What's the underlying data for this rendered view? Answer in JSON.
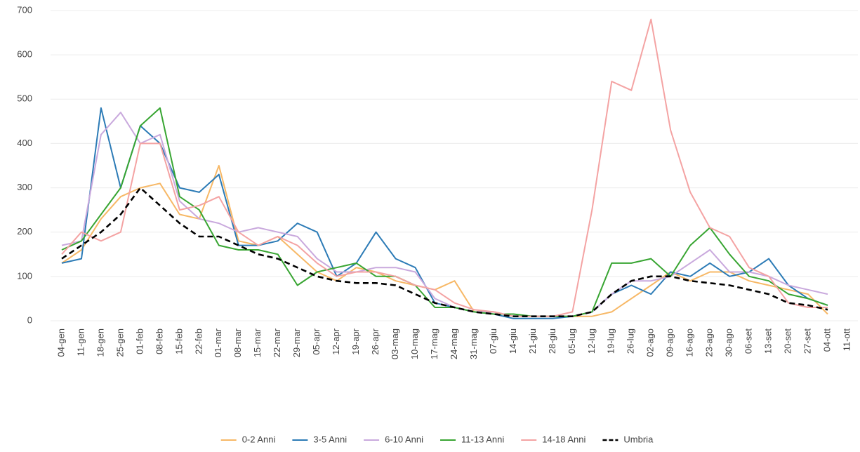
{
  "chart_data": {
    "type": "line",
    "categories": [
      "04-gen",
      "11-gen",
      "18-gen",
      "25-gen",
      "01-feb",
      "08-feb",
      "15-feb",
      "22-feb",
      "01-mar",
      "08-mar",
      "15-mar",
      "22-mar",
      "29-mar",
      "05-apr",
      "12-apr",
      "19-apr",
      "26-apr",
      "03-mag",
      "10-mag",
      "17-mag",
      "24-mag",
      "31-mag",
      "07-giu",
      "14-giu",
      "21-giu",
      "28-giu",
      "05-lug",
      "12-lug",
      "19-lug",
      "26-lug",
      "02-ago",
      "09-ago",
      "16-ago",
      "23-ago",
      "30-ago",
      "06-set",
      "13-set",
      "20-set",
      "27-set",
      "04-ott",
      "11-ott"
    ],
    "series": [
      {
        "name": "0-2 Anni",
        "color": "#f7b866",
        "values": [
          130,
          160,
          230,
          280,
          300,
          310,
          240,
          230,
          350,
          180,
          170,
          190,
          150,
          110,
          90,
          120,
          110,
          90,
          80,
          70,
          90,
          20,
          20,
          10,
          10,
          10,
          10,
          10,
          20,
          50,
          80,
          110,
          90,
          110,
          110,
          90,
          80,
          70,
          60,
          15,
          null
        ]
      },
      {
        "name": "3-5 Anni",
        "color": "#2c7bb6",
        "values": [
          130,
          140,
          480,
          300,
          440,
          400,
          300,
          290,
          330,
          170,
          170,
          180,
          220,
          200,
          100,
          130,
          200,
          140,
          120,
          40,
          30,
          20,
          15,
          5,
          5,
          5,
          10,
          20,
          60,
          80,
          60,
          110,
          100,
          130,
          100,
          110,
          140,
          80,
          50,
          35,
          null
        ]
      },
      {
        "name": "6-10 Anni",
        "color": "#c9a9dd",
        "values": [
          170,
          180,
          420,
          470,
          400,
          420,
          270,
          230,
          220,
          200,
          210,
          200,
          190,
          140,
          110,
          110,
          120,
          120,
          110,
          50,
          30,
          20,
          20,
          10,
          10,
          10,
          10,
          20,
          60,
          90,
          90,
          100,
          130,
          160,
          110,
          110,
          100,
          80,
          70,
          60,
          null
        ]
      },
      {
        "name": "11-13 Anni",
        "color": "#38a532",
        "values": [
          160,
          180,
          240,
          300,
          440,
          480,
          280,
          250,
          170,
          160,
          160,
          150,
          80,
          110,
          120,
          130,
          100,
          100,
          80,
          30,
          30,
          20,
          15,
          15,
          10,
          10,
          10,
          20,
          130,
          130,
          140,
          100,
          170,
          210,
          150,
          100,
          90,
          60,
          50,
          35,
          null
        ]
      },
      {
        "name": "14-18 Anni",
        "color": "#f4a3a3",
        "values": [
          150,
          200,
          180,
          200,
          400,
          400,
          250,
          260,
          280,
          200,
          170,
          190,
          170,
          130,
          100,
          110,
          110,
          100,
          80,
          70,
          40,
          25,
          20,
          10,
          10,
          10,
          20,
          250,
          540,
          520,
          680,
          430,
          290,
          210,
          190,
          120,
          100,
          40,
          30,
          30,
          null
        ]
      },
      {
        "name": "Umbria",
        "color": "#000000",
        "dashed": true,
        "values": [
          140,
          170,
          200,
          240,
          300,
          260,
          220,
          190,
          190,
          170,
          150,
          140,
          120,
          100,
          90,
          85,
          85,
          80,
          60,
          40,
          30,
          20,
          15,
          10,
          10,
          10,
          10,
          20,
          60,
          90,
          100,
          100,
          90,
          85,
          80,
          70,
          60,
          40,
          35,
          25,
          null
        ]
      }
    ],
    "ylim": [
      -10,
      710
    ],
    "yticks": [
      0,
      100,
      200,
      300,
      400,
      500,
      600,
      700
    ],
    "grid": true
  }
}
